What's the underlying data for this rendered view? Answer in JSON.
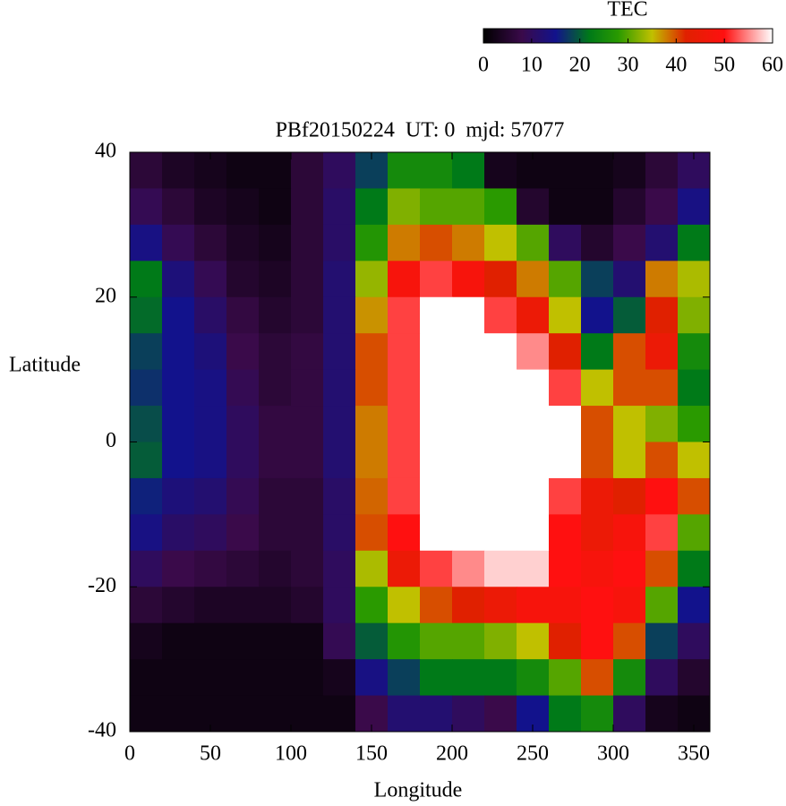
{
  "chart_data": {
    "type": "heatmap",
    "title": "PBf20150224  UT: 0  mjd: 57077",
    "x_label": "Longitude",
    "y_label": "Latitude",
    "xlim": [
      0,
      360
    ],
    "ylim": [
      -40,
      40
    ],
    "xticks": [
      0,
      50,
      100,
      150,
      200,
      250,
      300,
      350
    ],
    "yticks": [
      -40,
      -20,
      0,
      20,
      40
    ],
    "x": [
      10,
      30,
      50,
      70,
      90,
      110,
      130,
      150,
      170,
      190,
      210,
      230,
      250,
      270,
      290,
      310,
      330,
      350
    ],
    "y": [
      37.5,
      32.5,
      27.5,
      22.5,
      17.5,
      12.5,
      7.5,
      2.5,
      -2.5,
      -7.5,
      -12.5,
      -17.5,
      -22.5,
      -27.5,
      -32.5,
      -37.5
    ],
    "z": [
      [
        6,
        4,
        3,
        2,
        2,
        6,
        10,
        18,
        25,
        25,
        22,
        3,
        2,
        2,
        2,
        3,
        6,
        10
      ],
      [
        9,
        6,
        4,
        3,
        2,
        6,
        11,
        22,
        32,
        30,
        30,
        28,
        5,
        2,
        2,
        5,
        8,
        14
      ],
      [
        14,
        9,
        6,
        4,
        3,
        6,
        11,
        27,
        38,
        40,
        38,
        35,
        30,
        10,
        5,
        8,
        12,
        22
      ],
      [
        22,
        13,
        9,
        5,
        4,
        6,
        12,
        33,
        48,
        52,
        48,
        42,
        38,
        30,
        18,
        12,
        38,
        34
      ],
      [
        21,
        15,
        11,
        7,
        5,
        6,
        12,
        37,
        52,
        60,
        60,
        52,
        45,
        35,
        15,
        20,
        42,
        32
      ],
      [
        18,
        15,
        13,
        8,
        6,
        7,
        12,
        40,
        52,
        60,
        60,
        60,
        55,
        42,
        22,
        40,
        45,
        25
      ],
      [
        17,
        15,
        14,
        9,
        6,
        7,
        12,
        40,
        52,
        60,
        60,
        60,
        60,
        52,
        35,
        40,
        40,
        22
      ],
      [
        19,
        15,
        14,
        10,
        7,
        7,
        12,
        38,
        52,
        60,
        60,
        60,
        60,
        60,
        40,
        35,
        32,
        28
      ],
      [
        20,
        15,
        14,
        10,
        7,
        7,
        12,
        38,
        52,
        60,
        60,
        60,
        60,
        60,
        40,
        35,
        40,
        35
      ],
      [
        16,
        13,
        12,
        9,
        6,
        6,
        11,
        39,
        52,
        60,
        60,
        60,
        60,
        52,
        45,
        42,
        50,
        40
      ],
      [
        14,
        11,
        10,
        8,
        6,
        6,
        11,
        40,
        50,
        60,
        60,
        60,
        60,
        50,
        45,
        48,
        52,
        30
      ],
      [
        10,
        8,
        7,
        6,
        5,
        6,
        10,
        34,
        45,
        52,
        55,
        58,
        58,
        50,
        48,
        50,
        40,
        22
      ],
      [
        6,
        5,
        4,
        4,
        4,
        5,
        10,
        28,
        35,
        40,
        42,
        45,
        48,
        48,
        50,
        48,
        30,
        15
      ],
      [
        3,
        2,
        2,
        2,
        2,
        2,
        9,
        20,
        27,
        30,
        30,
        32,
        35,
        42,
        50,
        40,
        18,
        10
      ],
      [
        2,
        2,
        2,
        2,
        2,
        2,
        3,
        14,
        18,
        22,
        22,
        22,
        25,
        30,
        40,
        25,
        10,
        5
      ],
      [
        2,
        2,
        2,
        2,
        2,
        2,
        2,
        8,
        12,
        12,
        10,
        8,
        15,
        22,
        25,
        10,
        3,
        2
      ]
    ],
    "colorbar": {
      "label": "TEC",
      "lim": [
        0,
        60
      ],
      "ticks": [
        0,
        10,
        20,
        30,
        40,
        50,
        60
      ],
      "colorscale": [
        [
          0,
          "#000000"
        ],
        [
          8,
          "#3a0a4a"
        ],
        [
          15,
          "#12128c"
        ],
        [
          22,
          "#007a18"
        ],
        [
          28,
          "#2a9a00"
        ],
        [
          35,
          "#c0c000"
        ],
        [
          42,
          "#e02000"
        ],
        [
          50,
          "#ff1010"
        ],
        [
          55,
          "#ff8a8a"
        ],
        [
          60,
          "#ffffff"
        ]
      ]
    }
  }
}
